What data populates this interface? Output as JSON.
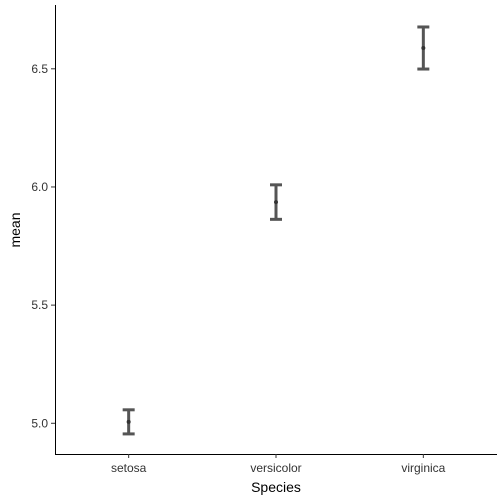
{
  "chart_data": {
    "type": "errorbar",
    "categories": [
      "setosa",
      "versicolor",
      "virginica"
    ],
    "series": [
      {
        "values": [
          5.006,
          5.936,
          6.588
        ],
        "lower": [
          4.955,
          5.863,
          6.499
        ],
        "upper": [
          5.057,
          6.009,
          6.677
        ]
      }
    ],
    "xlabel": "Species",
    "ylabel": "mean",
    "ylim": [
      4.87,
      6.77
    ],
    "yticks": [
      5.0,
      5.5,
      6.0,
      6.5
    ],
    "ytick_labels": [
      "5.0",
      "5.5",
      "6.0",
      "6.5"
    ],
    "grid": false,
    "colors": {
      "errorbar": "#555555",
      "point": "#333333",
      "axis": "#000000"
    }
  }
}
